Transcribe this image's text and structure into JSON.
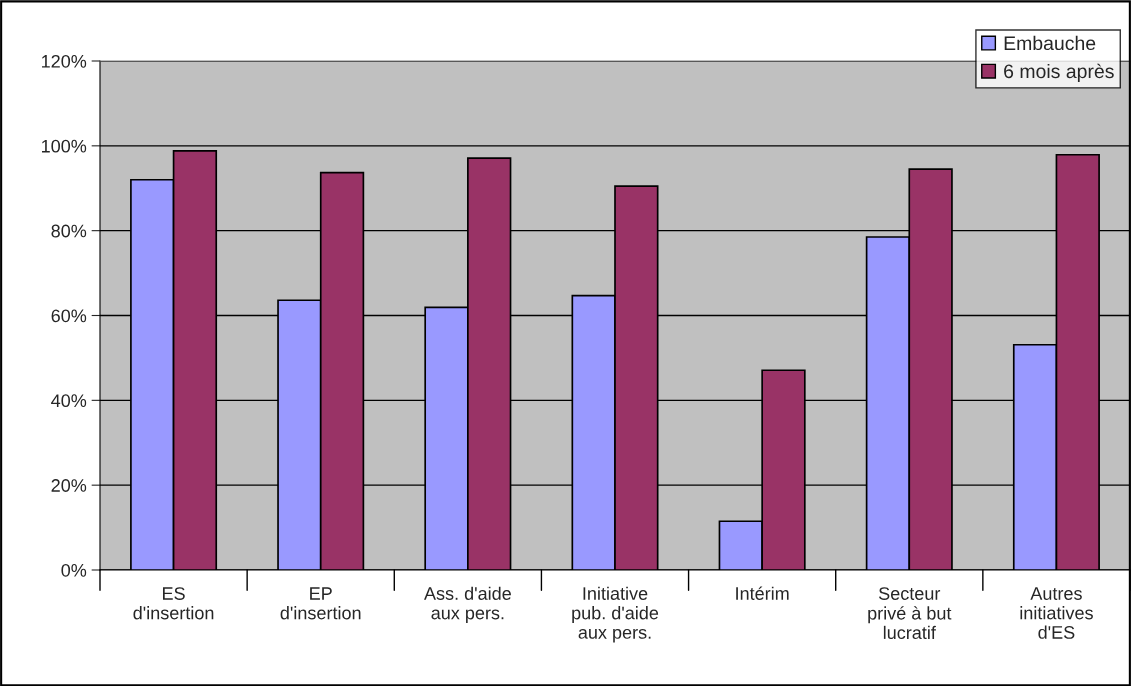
{
  "chart_data": {
    "type": "bar",
    "categories": [
      "ES\nd'insertion",
      "EP\nd'insertion",
      "Ass. d'aide\naux pers.",
      "Initiative\npub. d'aide\naux pers.",
      "Intérim",
      "Secteur\nprivé à but\nlucratif",
      "Autres\ninitiatives\nd'ES"
    ],
    "series": [
      {
        "name": "Embauche",
        "color": "#9999ff",
        "values": [
          92,
          63.6,
          61.9,
          64.7,
          11.5,
          78.5,
          53.1
        ]
      },
      {
        "name": "6 mois après",
        "color": "#993366",
        "values": [
          98.8,
          93.7,
          97.1,
          90.5,
          47.1,
          94.5,
          97.9
        ]
      }
    ],
    "ylim": [
      0,
      120
    ],
    "yticks": [
      {
        "value": 0,
        "label": "0%"
      },
      {
        "value": 20,
        "label": "20%"
      },
      {
        "value": 40,
        "label": "40%"
      },
      {
        "value": 60,
        "label": "60%"
      },
      {
        "value": 80,
        "label": "80%"
      },
      {
        "value": 100,
        "label": "100%"
      },
      {
        "value": 120,
        "label": "120%"
      }
    ],
    "grid": "y",
    "legend": "top right"
  }
}
